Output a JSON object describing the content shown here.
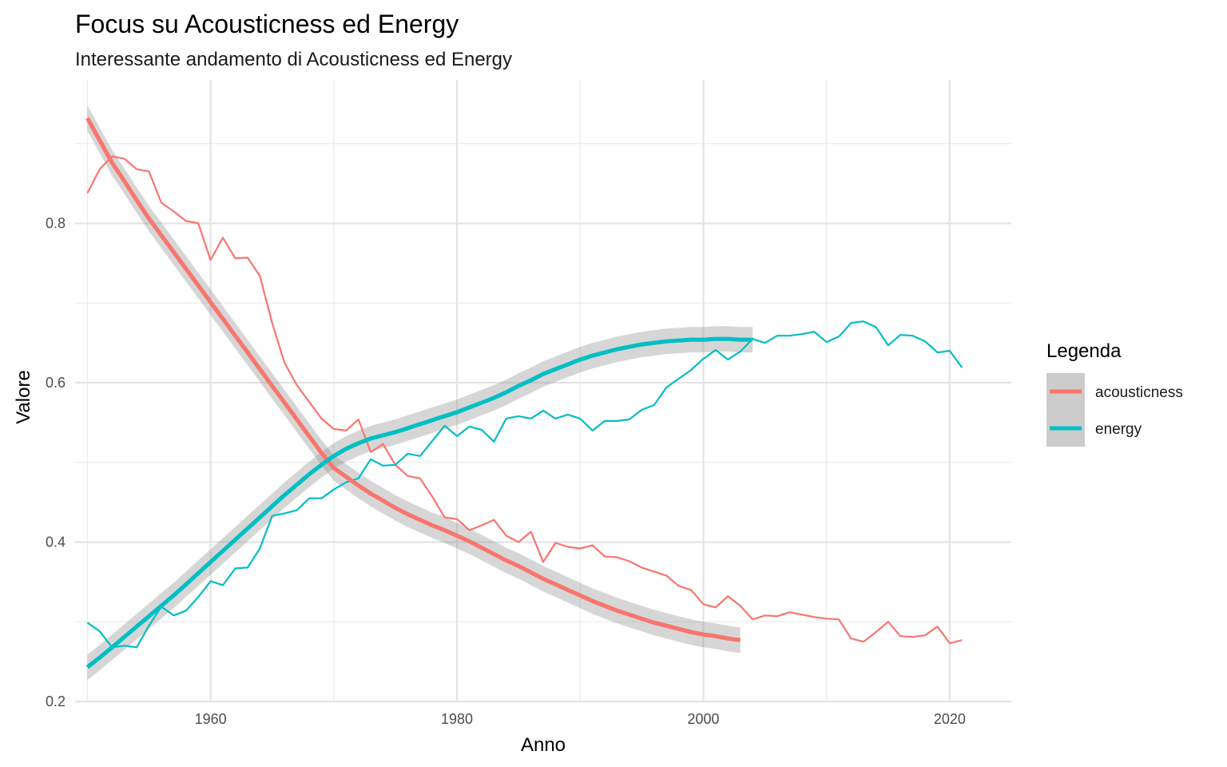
{
  "chart_data": {
    "type": "line",
    "title": "Focus su Acousticness ed Energy",
    "subtitle": "Interessante andamento di Acousticness ed Energy",
    "xlabel": "Anno",
    "ylabel": "Valore",
    "xlim": [
      1949,
      2025
    ],
    "ylim": [
      0.2,
      0.98
    ],
    "x_ticks": [
      1960,
      1980,
      2000,
      2020
    ],
    "x_minor_ticks": [
      1950,
      1970,
      1990,
      2010
    ],
    "y_ticks": [
      0.2,
      0.4,
      0.6,
      0.8
    ],
    "y_minor_ticks": [
      0.3,
      0.5,
      0.7,
      0.9
    ],
    "grid": true,
    "legend": {
      "title": "Legenda",
      "position": "right"
    },
    "x": [
      1950,
      1951,
      1952,
      1953,
      1954,
      1955,
      1956,
      1957,
      1958,
      1959,
      1960,
      1961,
      1962,
      1963,
      1964,
      1965,
      1966,
      1967,
      1968,
      1969,
      1970,
      1971,
      1972,
      1973,
      1974,
      1975,
      1976,
      1977,
      1978,
      1979,
      1980,
      1981,
      1982,
      1983,
      1984,
      1985,
      1986,
      1987,
      1988,
      1989,
      1990,
      1991,
      1992,
      1993,
      1994,
      1995,
      1996,
      1997,
      1998,
      1999,
      2000,
      2001,
      2002,
      2003,
      2004,
      2005,
      2006,
      2007,
      2008,
      2009,
      2010,
      2011,
      2012,
      2013,
      2014,
      2015,
      2016,
      2017,
      2018,
      2019,
      2020,
      2021
    ],
    "series": [
      {
        "name": "acousticness",
        "color": "#F8766D",
        "values": [
          0.838,
          0.868,
          0.884,
          0.881,
          0.868,
          0.865,
          0.826,
          0.815,
          0.803,
          0.8,
          0.754,
          0.782,
          0.756,
          0.757,
          0.734,
          0.675,
          0.625,
          0.597,
          0.576,
          0.555,
          0.542,
          0.54,
          0.554,
          0.513,
          0.523,
          0.497,
          0.483,
          0.48,
          0.457,
          0.431,
          0.429,
          0.415,
          0.421,
          0.428,
          0.408,
          0.4,
          0.413,
          0.375,
          0.399,
          0.394,
          0.392,
          0.396,
          0.382,
          0.381,
          0.376,
          0.368,
          0.363,
          0.358,
          0.345,
          0.34,
          0.322,
          0.318,
          0.332,
          0.32,
          0.303,
          0.308,
          0.307,
          0.312,
          0.309,
          0.306,
          0.304,
          0.303,
          0.279,
          0.275,
          0.287,
          0.3,
          0.282,
          0.281,
          0.283,
          0.294,
          0.273,
          0.277
        ],
        "smooth": [
          0.932,
          0.904,
          0.876,
          0.853,
          0.829,
          0.806,
          0.785,
          0.764,
          0.743,
          0.722,
          0.701,
          0.68,
          0.659,
          0.638,
          0.617,
          0.596,
          0.575,
          0.554,
          0.533,
          0.512,
          0.493,
          0.482,
          0.471,
          0.461,
          0.452,
          0.443,
          0.435,
          0.428,
          0.421,
          0.415,
          0.408,
          0.401,
          0.393,
          0.385,
          0.377,
          0.37,
          0.362,
          0.354,
          0.347,
          0.34,
          0.333,
          0.326,
          0.32,
          0.314,
          0.309,
          0.304,
          0.299,
          0.295,
          0.291,
          0.287,
          0.284,
          0.282,
          0.279,
          0.277
        ],
        "smooth_x": [
          1950,
          1951,
          1952,
          1953,
          1954,
          1955,
          1956,
          1957,
          1958,
          1959,
          1960,
          1961,
          1962,
          1963,
          1964,
          1965,
          1966,
          1967,
          1968,
          1969,
          1970,
          1971,
          1972,
          1973,
          1974,
          1975,
          1976,
          1977,
          1978,
          1979,
          1980,
          1981,
          1982,
          1983,
          1984,
          1985,
          1986,
          1987,
          1988,
          1989,
          1990,
          1991,
          1992,
          1993,
          1994,
          1995,
          1996,
          1997,
          1998,
          1999,
          2000,
          2001,
          2002,
          2003
        ]
      },
      {
        "name": "energy",
        "color": "#00BFC4",
        "values": [
          0.299,
          0.288,
          0.268,
          0.27,
          0.268,
          0.295,
          0.319,
          0.308,
          0.314,
          0.331,
          0.351,
          0.346,
          0.367,
          0.368,
          0.392,
          0.433,
          0.436,
          0.44,
          0.455,
          0.455,
          0.466,
          0.475,
          0.48,
          0.504,
          0.496,
          0.497,
          0.511,
          0.508,
          0.527,
          0.546,
          0.533,
          0.545,
          0.541,
          0.526,
          0.555,
          0.558,
          0.555,
          0.565,
          0.555,
          0.56,
          0.555,
          0.54,
          0.552,
          0.552,
          0.554,
          0.566,
          0.572,
          0.594,
          0.605,
          0.616,
          0.63,
          0.641,
          0.629,
          0.639,
          0.655,
          0.65,
          0.659,
          0.659,
          0.661,
          0.664,
          0.651,
          0.658,
          0.675,
          0.677,
          0.67,
          0.647,
          0.66,
          0.659,
          0.652,
          0.638,
          0.64,
          0.619
        ],
        "smooth": [
          0.243,
          0.255,
          0.268,
          0.281,
          0.294,
          0.307,
          0.32,
          0.333,
          0.347,
          0.361,
          0.375,
          0.389,
          0.403,
          0.417,
          0.431,
          0.445,
          0.459,
          0.472,
          0.485,
          0.497,
          0.508,
          0.517,
          0.524,
          0.53,
          0.534,
          0.538,
          0.543,
          0.548,
          0.553,
          0.558,
          0.563,
          0.569,
          0.575,
          0.581,
          0.588,
          0.596,
          0.603,
          0.611,
          0.617,
          0.623,
          0.629,
          0.634,
          0.638,
          0.642,
          0.645,
          0.648,
          0.65,
          0.652,
          0.653,
          0.654,
          0.654,
          0.655,
          0.655,
          0.654,
          0.654
        ],
        "smooth_x": [
          1950,
          1951,
          1952,
          1953,
          1954,
          1955,
          1956,
          1957,
          1958,
          1959,
          1960,
          1961,
          1962,
          1963,
          1964,
          1965,
          1966,
          1967,
          1968,
          1969,
          1970,
          1971,
          1972,
          1973,
          1974,
          1975,
          1976,
          1977,
          1978,
          1979,
          1980,
          1981,
          1982,
          1983,
          1984,
          1985,
          1986,
          1987,
          1988,
          1989,
          1990,
          1991,
          1992,
          1993,
          1994,
          1995,
          1996,
          1997,
          1998,
          1999,
          2000,
          2001,
          2002,
          2003,
          2004
        ]
      }
    ]
  }
}
